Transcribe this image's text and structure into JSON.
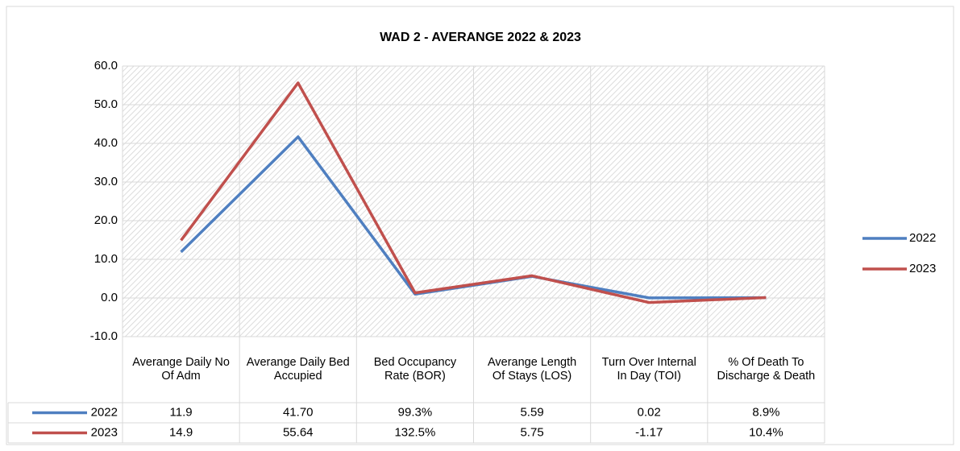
{
  "chart_data": {
    "type": "line",
    "title": "WAD 2 - AVERANGE 2022 & 2023",
    "categories": [
      "Averange Daily No Of Adm",
      "Averange Daily Bed Accupied",
      "Bed Occupancy Rate (BOR)",
      "Averange Length Of Stays (LOS)",
      "Turn Over Internal In Day (TOI)",
      "% Of Death To Discharge & Death"
    ],
    "series": [
      {
        "name": "2022",
        "color": "#4f7fc0",
        "values": [
          11.9,
          41.7,
          0.993,
          5.59,
          0.02,
          0.089
        ],
        "value_labels": [
          "11.9",
          "41.70",
          "99.3%",
          "5.59",
          "0.02",
          "8.9%"
        ]
      },
      {
        "name": "2023",
        "color": "#c0504d",
        "values": [
          14.9,
          55.64,
          1.325,
          5.75,
          -1.17,
          0.104
        ],
        "value_labels": [
          "14.9",
          "55.64",
          "132.5%",
          "5.75",
          "-1.17",
          "10.4%"
        ]
      }
    ],
    "ylim": [
      -10,
      60
    ],
    "yticks": [
      {
        "value": -10,
        "label": "-10.0"
      },
      {
        "value": 0,
        "label": "0.0"
      },
      {
        "value": 10,
        "label": "10.0"
      },
      {
        "value": 20,
        "label": "20.0"
      },
      {
        "value": 30,
        "label": "30.0"
      },
      {
        "value": 40,
        "label": "40.0"
      },
      {
        "value": 50,
        "label": "50.0"
      },
      {
        "value": 60,
        "label": "60.0"
      }
    ],
    "grid": true,
    "legend": "right"
  }
}
